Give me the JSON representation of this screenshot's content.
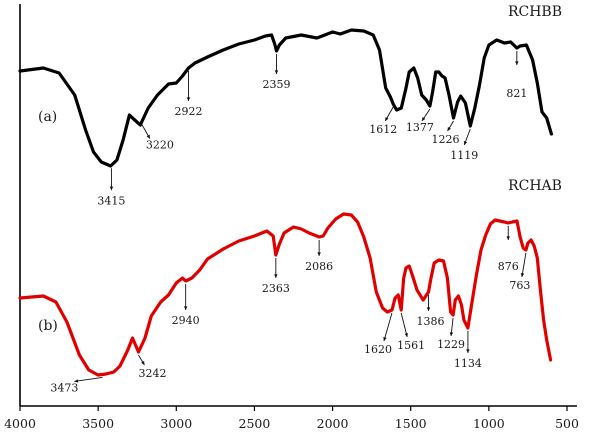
{
  "chart_data": {
    "type": "line",
    "xlim": [
      4000,
      500
    ],
    "x_ticks": [
      4000,
      3500,
      3000,
      2500,
      2000,
      1500,
      1000,
      500
    ],
    "x_tick_labels": [
      "4000",
      "3500",
      "3000",
      "2500",
      "2000",
      "1500",
      "1000",
      "500"
    ],
    "xlabel": "",
    "ylabel": "",
    "grid": false,
    "legend": "none",
    "series": [
      {
        "name": "RCHBB",
        "panel": "(a)",
        "color": "#000000",
        "points": [
          [
            4000,
            71
          ],
          [
            3850,
            68
          ],
          [
            3750,
            73
          ],
          [
            3650,
            95
          ],
          [
            3580,
            130
          ],
          [
            3530,
            152
          ],
          [
            3480,
            162
          ],
          [
            3420,
            166
          ],
          [
            3380,
            160
          ],
          [
            3340,
            140
          ],
          [
            3300,
            115
          ],
          [
            3280,
            118
          ],
          [
            3230,
            125
          ],
          [
            3180,
            108
          ],
          [
            3120,
            95
          ],
          [
            3050,
            84
          ],
          [
            3000,
            83
          ],
          [
            2960,
            76
          ],
          [
            2922,
            68
          ],
          [
            2880,
            63
          ],
          [
            2800,
            57
          ],
          [
            2700,
            50
          ],
          [
            2600,
            44
          ],
          [
            2500,
            40
          ],
          [
            2430,
            36
          ],
          [
            2390,
            35
          ],
          [
            2370,
            44
          ],
          [
            2359,
            51
          ],
          [
            2340,
            45
          ],
          [
            2300,
            38
          ],
          [
            2200,
            35
          ],
          [
            2100,
            38
          ],
          [
            2050,
            35
          ],
          [
            2000,
            32
          ],
          [
            1950,
            34
          ],
          [
            1880,
            30
          ],
          [
            1800,
            31
          ],
          [
            1740,
            35
          ],
          [
            1700,
            50
          ],
          [
            1660,
            88
          ],
          [
            1630,
            97
          ],
          [
            1612,
            104
          ],
          [
            1590,
            110
          ],
          [
            1560,
            108
          ],
          [
            1530,
            88
          ],
          [
            1510,
            72
          ],
          [
            1480,
            68
          ],
          [
            1455,
            78
          ],
          [
            1430,
            95
          ],
          [
            1400,
            100
          ],
          [
            1377,
            106
          ],
          [
            1360,
            92
          ],
          [
            1340,
            72
          ],
          [
            1320,
            72
          ],
          [
            1300,
            76
          ],
          [
            1280,
            78
          ],
          [
            1255,
            95
          ],
          [
            1226,
            118
          ],
          [
            1200,
            102
          ],
          [
            1180,
            96
          ],
          [
            1150,
            103
          ],
          [
            1119,
            126
          ],
          [
            1090,
            108
          ],
          [
            1060,
            85
          ],
          [
            1030,
            58
          ],
          [
            1000,
            45
          ],
          [
            950,
            40
          ],
          [
            900,
            43
          ],
          [
            860,
            42
          ],
          [
            821,
            48
          ],
          [
            800,
            46
          ],
          [
            760,
            45
          ],
          [
            720,
            60
          ],
          [
            690,
            83
          ],
          [
            660,
            112
          ],
          [
            630,
            118
          ],
          [
            600,
            134
          ]
        ]
      },
      {
        "name": "RCHAB",
        "panel": "(b)",
        "color": "#e00000",
        "points": [
          [
            4000,
            298
          ],
          [
            3850,
            296
          ],
          [
            3770,
            302
          ],
          [
            3700,
            322
          ],
          [
            3620,
            355
          ],
          [
            3560,
            370
          ],
          [
            3500,
            375
          ],
          [
            3450,
            374
          ],
          [
            3400,
            372
          ],
          [
            3360,
            366
          ],
          [
            3310,
            350
          ],
          [
            3280,
            338
          ],
          [
            3242,
            352
          ],
          [
            3200,
            338
          ],
          [
            3160,
            316
          ],
          [
            3100,
            302
          ],
          [
            3050,
            295
          ],
          [
            3000,
            283
          ],
          [
            2960,
            278
          ],
          [
            2940,
            281
          ],
          [
            2900,
            278
          ],
          [
            2850,
            270
          ],
          [
            2800,
            259
          ],
          [
            2750,
            254
          ],
          [
            2700,
            249
          ],
          [
            2600,
            241
          ],
          [
            2500,
            236
          ],
          [
            2420,
            231
          ],
          [
            2380,
            236
          ],
          [
            2363,
            255
          ],
          [
            2340,
            244
          ],
          [
            2310,
            233
          ],
          [
            2250,
            227
          ],
          [
            2200,
            229
          ],
          [
            2150,
            233
          ],
          [
            2100,
            236
          ],
          [
            2086,
            237
          ],
          [
            2060,
            236
          ],
          [
            2030,
            228
          ],
          [
            1980,
            219
          ],
          [
            1930,
            214
          ],
          [
            1880,
            215
          ],
          [
            1840,
            222
          ],
          [
            1800,
            237
          ],
          [
            1760,
            258
          ],
          [
            1720,
            292
          ],
          [
            1680,
            308
          ],
          [
            1650,
            312
          ],
          [
            1620,
            310
          ],
          [
            1600,
            298
          ],
          [
            1580,
            295
          ],
          [
            1561,
            310
          ],
          [
            1545,
            278
          ],
          [
            1530,
            268
          ],
          [
            1510,
            266
          ],
          [
            1490,
            275
          ],
          [
            1460,
            290
          ],
          [
            1420,
            300
          ],
          [
            1386,
            292
          ],
          [
            1370,
            278
          ],
          [
            1350,
            263
          ],
          [
            1320,
            260
          ],
          [
            1290,
            261
          ],
          [
            1265,
            278
          ],
          [
            1245,
            312
          ],
          [
            1229,
            315
          ],
          [
            1215,
            300
          ],
          [
            1195,
            296
          ],
          [
            1175,
            305
          ],
          [
            1160,
            320
          ],
          [
            1134,
            328
          ],
          [
            1110,
            304
          ],
          [
            1080,
            275
          ],
          [
            1050,
            250
          ],
          [
            1020,
            235
          ],
          [
            990,
            224
          ],
          [
            960,
            220
          ],
          [
            930,
            221
          ],
          [
            900,
            222
          ],
          [
            876,
            223
          ],
          [
            850,
            222
          ],
          [
            820,
            221
          ],
          [
            800,
            237
          ],
          [
            780,
            248
          ],
          [
            763,
            250
          ],
          [
            750,
            243
          ],
          [
            730,
            240
          ],
          [
            710,
            246
          ],
          [
            690,
            258
          ],
          [
            670,
            290
          ],
          [
            650,
            320
          ],
          [
            630,
            340
          ],
          [
            605,
            360
          ]
        ]
      }
    ],
    "annotations": [
      {
        "series": "RCHBB",
        "label": "3415",
        "x": 3415
      },
      {
        "series": "RCHBB",
        "label": "3220",
        "x": 3220
      },
      {
        "series": "RCHBB",
        "label": "2922",
        "x": 2922
      },
      {
        "series": "RCHBB",
        "label": "2359",
        "x": 2359
      },
      {
        "series": "RCHBB",
        "label": "1612",
        "x": 1612
      },
      {
        "series": "RCHBB",
        "label": "1377",
        "x": 1377
      },
      {
        "series": "RCHBB",
        "label": "1226",
        "x": 1226
      },
      {
        "series": "RCHBB",
        "label": "1119",
        "x": 1119
      },
      {
        "series": "RCHBB",
        "label": "821",
        "x": 821
      },
      {
        "series": "RCHAB",
        "label": "3473",
        "x": 3473
      },
      {
        "series": "RCHAB",
        "label": "3242",
        "x": 3242
      },
      {
        "series": "RCHAB",
        "label": "2940",
        "x": 2940
      },
      {
        "series": "RCHAB",
        "label": "2363",
        "x": 2363
      },
      {
        "series": "RCHAB",
        "label": "2086",
        "x": 2086
      },
      {
        "series": "RCHAB",
        "label": "1620",
        "x": 1620
      },
      {
        "series": "RCHAB",
        "label": "1561",
        "x": 1561
      },
      {
        "series": "RCHAB",
        "label": "1386",
        "x": 1386
      },
      {
        "series": "RCHAB",
        "label": "1229",
        "x": 1229
      },
      {
        "series": "RCHAB",
        "label": "1134",
        "x": 1134
      },
      {
        "series": "RCHAB",
        "label": "876",
        "x": 876
      },
      {
        "series": "RCHAB",
        "label": "763",
        "x": 763
      }
    ]
  }
}
